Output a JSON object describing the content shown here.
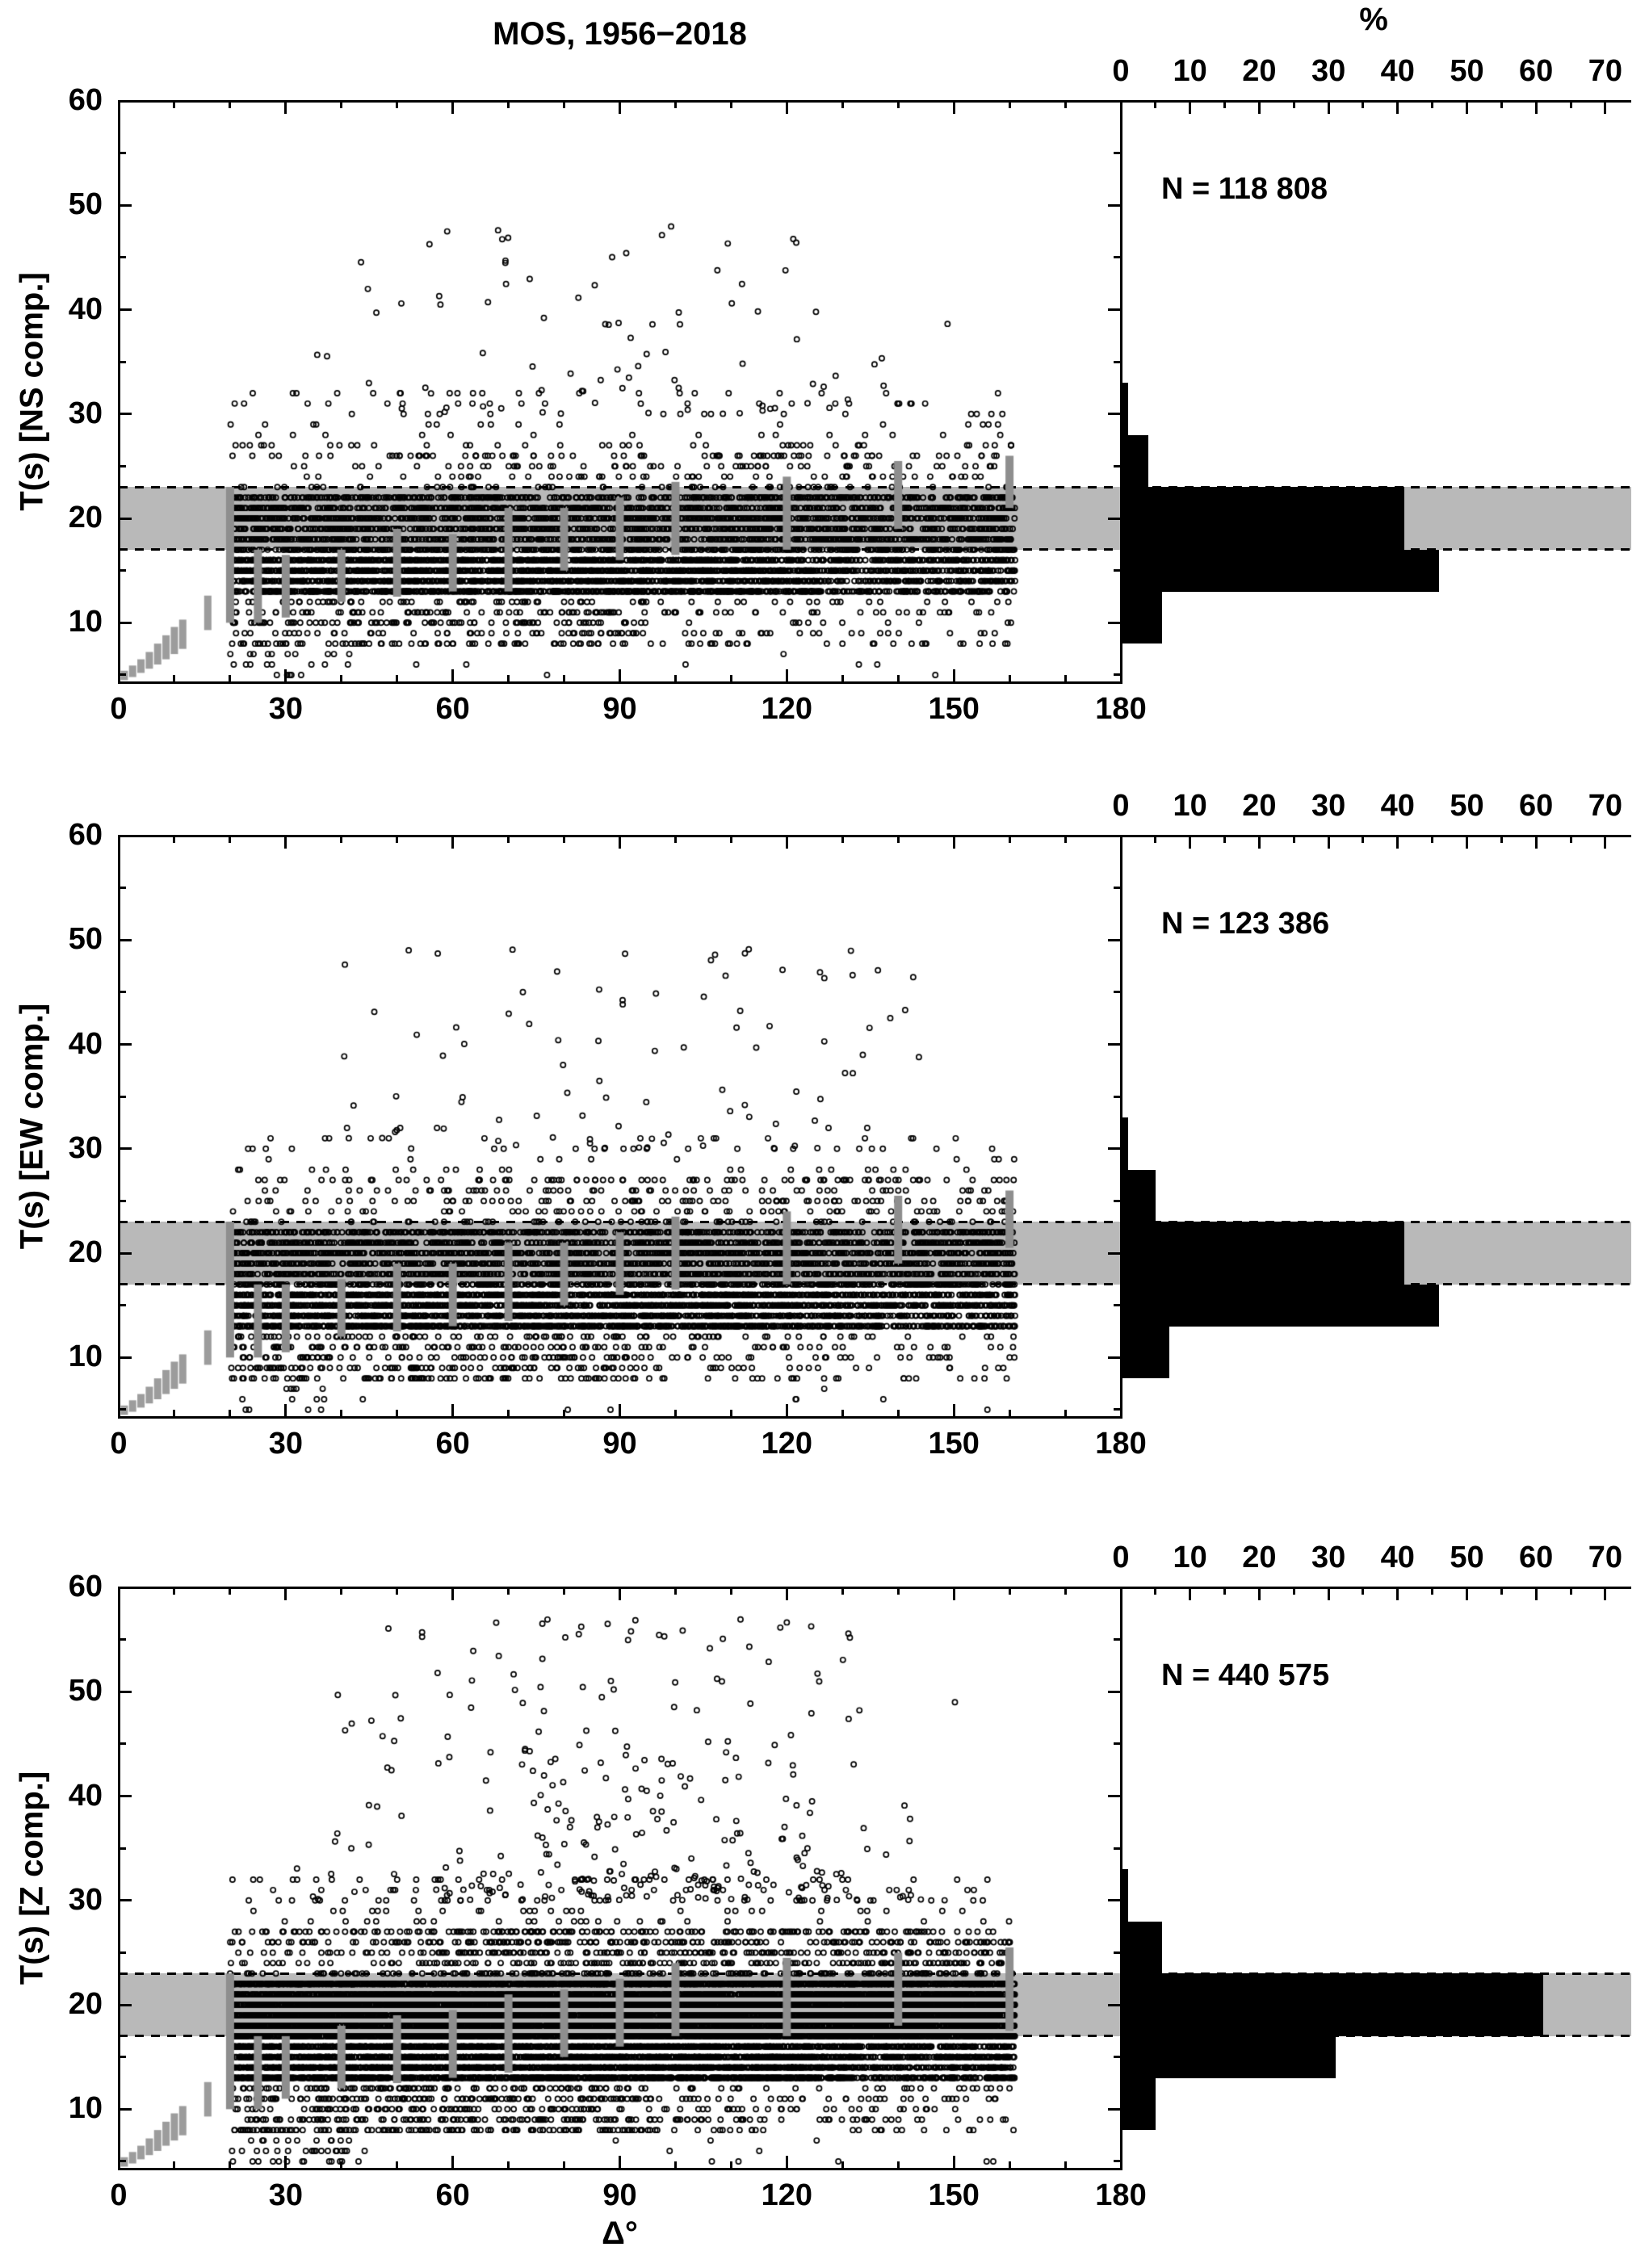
{
  "chart_data": {
    "type": "scatter",
    "title": "MOS, 1956−2018",
    "percent_label": "%",
    "xlabel": "Δ°",
    "x_axis": {
      "label": "Δ°",
      "min": 0,
      "max": 180,
      "major_ticks": [
        0,
        30,
        60,
        90,
        120,
        150,
        180
      ],
      "minor_step": 10
    },
    "y_axis": {
      "label": "T(s)",
      "min": 4.3,
      "max": 60,
      "major_ticks": [
        10,
        20,
        30,
        40,
        50,
        60
      ],
      "minor_step": 5
    },
    "hist_axis": {
      "label": "%",
      "min": 0,
      "max": 70,
      "major_ticks": [
        0,
        10,
        20,
        30,
        40,
        50,
        60,
        70
      ],
      "minor_step": 5
    },
    "band": {
      "t_low": 17,
      "t_high": 23
    },
    "colors": {
      "band": "#b9b9b9",
      "steps": "#9c9c9c",
      "quartile": "#8e8e8e",
      "points": "#000000",
      "hist_bars": "#000000",
      "frame": "#000000"
    },
    "steps": [
      [
        1,
        4.5,
        5.4
      ],
      [
        2.5,
        4.8,
        5.9
      ],
      [
        4,
        5.2,
        6.5
      ],
      [
        5.5,
        5.6,
        7.2
      ],
      [
        7,
        6.0,
        8.0
      ],
      [
        8.5,
        6.5,
        8.8
      ],
      [
        10,
        7.0,
        9.6
      ],
      [
        11.5,
        7.5,
        10.3
      ],
      [
        16,
        9.3,
        12.6
      ]
    ],
    "panels": [
      {
        "id": "ns",
        "component": "NS",
        "ylabel": "T(s) [NS comp.]",
        "n_label": "N = 118 808",
        "n_value": 118808,
        "histogram": {
          "bin_edges": [
            8,
            13,
            17,
            23,
            28,
            33
          ],
          "values_percent": [
            6,
            46,
            41,
            4,
            1
          ]
        },
        "quartile_bars": [
          [
            20,
            10,
            23
          ],
          [
            25,
            10,
            17
          ],
          [
            30,
            10.5,
            16.5
          ],
          [
            40,
            12,
            17
          ],
          [
            50,
            12.5,
            19
          ],
          [
            60,
            13,
            18.5
          ],
          [
            70,
            13,
            21
          ],
          [
            80,
            15,
            21
          ],
          [
            90,
            16,
            22
          ],
          [
            100,
            16.5,
            23.5
          ],
          [
            120,
            17,
            24
          ],
          [
            140,
            19,
            25.5
          ],
          [
            160,
            21,
            26
          ]
        ],
        "render": {
          "seed": 1,
          "n_points": 7000,
          "outlier_frac": 0.013,
          "max_outlier_t": 48
        }
      },
      {
        "id": "ew",
        "component": "EW",
        "ylabel": "T(s) [EW comp.]",
        "n_label": "N = 123 386",
        "n_value": 123386,
        "histogram": {
          "bin_edges": [
            8,
            13,
            17,
            23,
            28,
            33
          ],
          "values_percent": [
            7,
            46,
            41,
            5,
            1
          ]
        },
        "quartile_bars": [
          [
            20,
            10,
            23
          ],
          [
            25,
            10,
            17
          ],
          [
            30,
            10.5,
            17
          ],
          [
            40,
            12,
            17.5
          ],
          [
            50,
            12.5,
            19
          ],
          [
            60,
            13,
            19
          ],
          [
            70,
            13.5,
            21
          ],
          [
            80,
            15,
            21
          ],
          [
            90,
            16,
            22
          ],
          [
            100,
            16.5,
            23.5
          ],
          [
            120,
            17,
            24
          ],
          [
            140,
            19,
            25.5
          ],
          [
            160,
            20.5,
            26
          ]
        ],
        "render": {
          "seed": 2,
          "n_points": 7000,
          "outlier_frac": 0.013,
          "max_outlier_t": 50
        }
      },
      {
        "id": "z",
        "component": "Z",
        "ylabel": "T(s) [Z comp.]",
        "n_label": "N = 440 575",
        "n_value": 440575,
        "histogram": {
          "bin_edges": [
            8,
            13,
            17,
            23,
            28,
            33
          ],
          "values_percent": [
            5,
            31,
            61,
            6,
            1
          ]
        },
        "quartile_bars": [
          [
            20,
            10,
            23
          ],
          [
            25,
            10,
            17
          ],
          [
            30,
            11,
            17
          ],
          [
            40,
            12,
            18
          ],
          [
            50,
            12.5,
            19
          ],
          [
            60,
            13,
            19.5
          ],
          [
            70,
            13.5,
            21
          ],
          [
            80,
            15,
            21.5
          ],
          [
            90,
            16,
            22.5
          ],
          [
            100,
            17,
            24
          ],
          [
            120,
            17,
            24.5
          ],
          [
            140,
            18,
            25
          ],
          [
            160,
            17.5,
            25.5
          ]
        ],
        "render": {
          "seed": 3,
          "n_points": 15000,
          "outlier_frac": 0.02,
          "max_outlier_t": 57
        }
      }
    ]
  }
}
